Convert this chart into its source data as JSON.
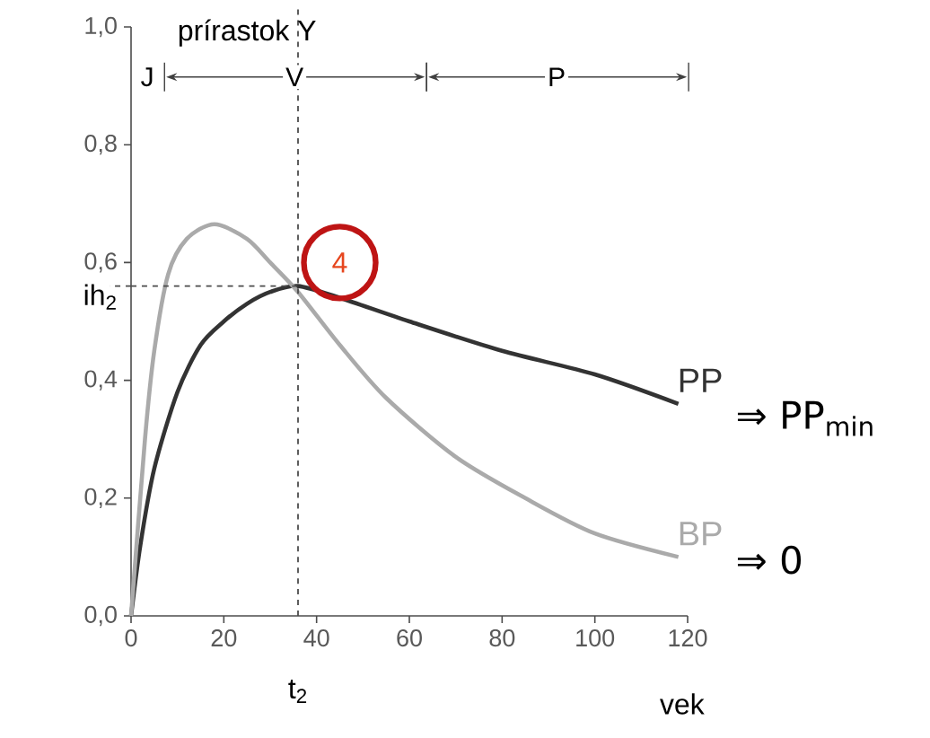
{
  "chart_data": {
    "type": "line",
    "xlabel": "vek",
    "legend": false,
    "grid": false,
    "line_style": "solid",
    "marker": "none",
    "xlim": [
      0,
      120
    ],
    "ylim": [
      0,
      1
    ],
    "xticks": [
      0,
      20,
      40,
      60,
      80,
      100,
      120
    ],
    "yticks": [
      {
        "value": 0,
        "label": "0,0"
      },
      {
        "value": 0.2,
        "label": "0,2"
      },
      {
        "value": 0.4,
        "label": "0,4"
      },
      {
        "value": 0.6,
        "label": "0,6"
      },
      {
        "value": 0.8,
        "label": "0,8"
      },
      {
        "value": 1,
        "label": "1,0"
      }
    ],
    "series": [
      {
        "name": "PP",
        "color": "#333333",
        "x": [
          0,
          2,
          5,
          10,
          15,
          20,
          25,
          30,
          36,
          45,
          60,
          80,
          100,
          118
        ],
        "values": [
          0,
          0.12,
          0.25,
          0.38,
          0.46,
          0.5,
          0.53,
          0.55,
          0.56,
          0.54,
          0.5,
          0.45,
          0.41,
          0.36
        ]
      },
      {
        "name": "BP",
        "color": "#aaaaaa",
        "x": [
          0,
          3,
          5,
          8,
          12,
          18,
          25,
          30,
          36,
          45,
          55,
          70,
          85,
          100,
          118
        ],
        "values": [
          0,
          0.3,
          0.45,
          0.58,
          0.64,
          0.665,
          0.64,
          0.6,
          0.55,
          0.46,
          0.37,
          0.27,
          0.2,
          0.14,
          0.1
        ]
      }
    ],
    "ref_lines": [
      {
        "axis": "y",
        "value": 0.56,
        "label": "ih$_{2}$",
        "line_style": "dashed"
      },
      {
        "axis": "x",
        "value": 36,
        "label": "t$_{2}$",
        "line_style": "dashed"
      }
    ],
    "annotations": [
      "prírastok Y",
      "J",
      "V",
      "P",
      "4",
      "⇒ PP$_{min}$",
      "⇒ 0"
    ]
  }
}
